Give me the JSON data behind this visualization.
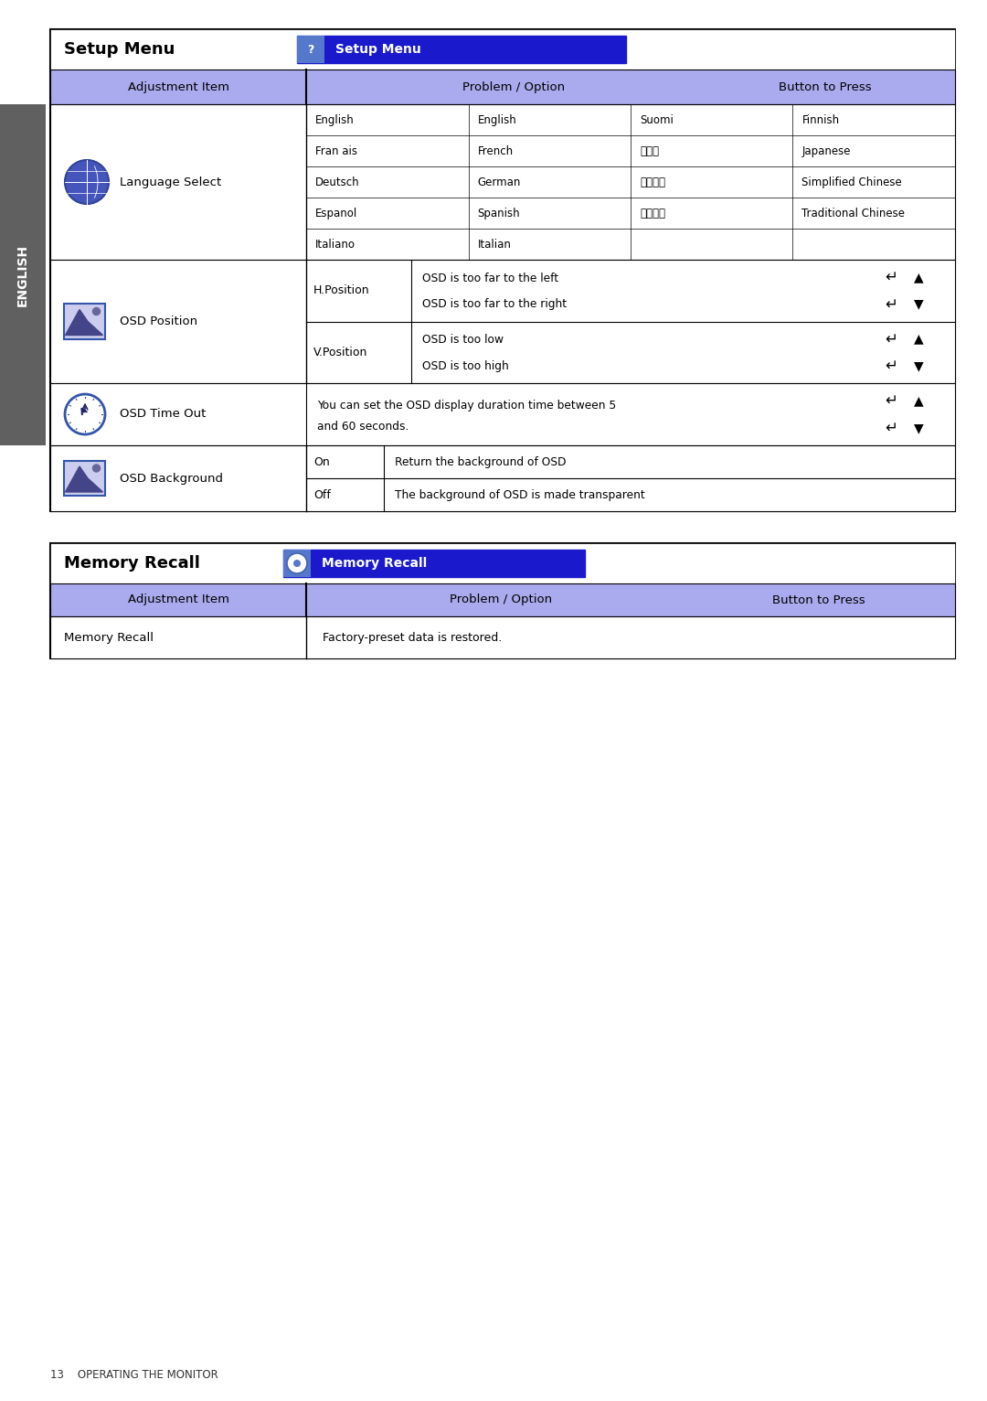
{
  "page_bg": "#ffffff",
  "sidebar_text": "ENGLISH",
  "sidebar_bg": "#606060",
  "footer_text": "13    OPERATING THE MONITOR",
  "table1_title": "Setup Menu",
  "table1_header_blue_text": "Setup Menu",
  "table2_title": "Memory Recall",
  "table2_header_blue_text": "Memory Recall",
  "header_bg": "#1a1acc",
  "col_header_bg": "#aaaaee",
  "lang_data": [
    [
      "English",
      "English",
      "Suomi",
      "Finnish"
    ],
    [
      "Fran ais",
      "French",
      "日本語",
      "Japanese"
    ],
    [
      "Deutsch",
      "German",
      "简体中文",
      "Simplified Chinese"
    ],
    [
      "Espanol",
      "Spanish",
      "繁体中文",
      "Traditional Chinese"
    ],
    [
      "Italiano",
      "Italian",
      "",
      ""
    ]
  ]
}
